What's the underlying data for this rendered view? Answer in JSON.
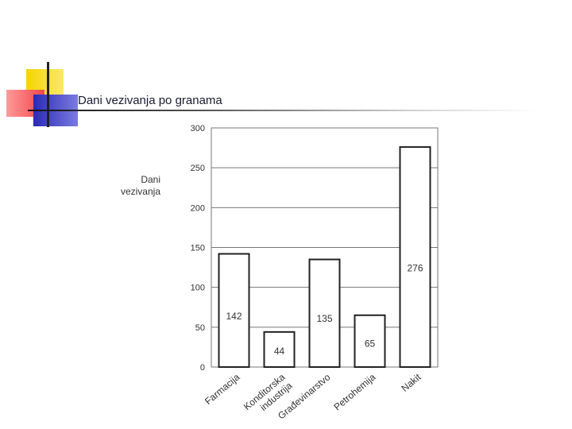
{
  "slide": {
    "title": "Dani vezivanja po granama"
  },
  "chart_data": {
    "type": "bar",
    "title": "",
    "ylabel_lines": [
      "Dani",
      "vezivanja"
    ],
    "xlabel": "",
    "categories": [
      "Farmacija",
      "Konditorska industrija",
      "Građevinarstvo",
      "Petrohemija",
      "Nakit"
    ],
    "category_lines": [
      [
        "Farmacija"
      ],
      [
        "Konditorska",
        "industrija"
      ],
      [
        "Građevinarstvo"
      ],
      [
        "Petrohemija"
      ],
      [
        "Nakit"
      ]
    ],
    "values": [
      142,
      44,
      135,
      65,
      276
    ],
    "data_labels": [
      "142",
      "44",
      "135",
      "65",
      "276"
    ],
    "ylim": [
      0,
      300
    ],
    "yticks": [
      0,
      50,
      100,
      150,
      200,
      250,
      300
    ],
    "grid": true,
    "legend": "none",
    "colors": {
      "bar_fill": "#ffffff",
      "bar_stroke": "#222222",
      "grid": "#777777",
      "text": "#333333"
    }
  }
}
